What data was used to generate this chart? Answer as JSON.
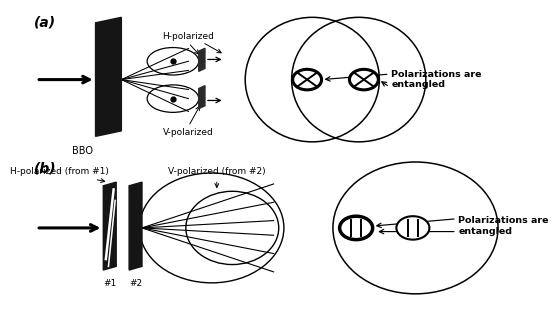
{
  "panel_a": {
    "label": "(a)",
    "bbo_label": "BBO",
    "h_pol_label": "H-polarized",
    "v_pol_label": "V-polarized",
    "pol_entangled_label": "Polarizations are\nentangled"
  },
  "panel_b": {
    "label": "(b)",
    "h_pol_label": "H-polarized (from #1)",
    "v_pol_label": "V-polarized (from #2)",
    "pol_entangled_label": "Polarizations are\nentangled",
    "crystal1_label": "#1",
    "crystal2_label": "#2"
  }
}
